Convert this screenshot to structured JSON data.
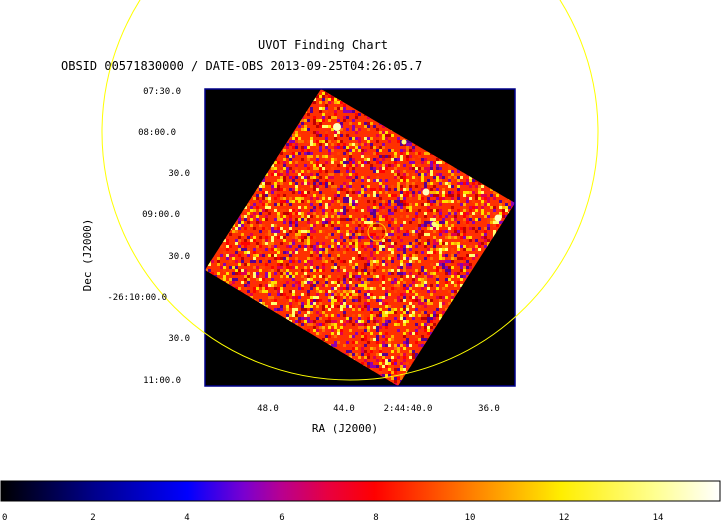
{
  "chart": {
    "title": "UVOT Finding Chart",
    "subtitle": "OBSID 00571830000 / DATE-OBS 2013-09-25T04:26:05.7",
    "xlabel": "RA (J2000)",
    "ylabel": "Dec (J2000)",
    "ra_ticks": [
      "48.0",
      "44.0",
      "2:44:40.0",
      "36.0"
    ],
    "dec_ticks": [
      "07:30.0",
      "08:00.0",
      "30.0",
      "09:00.0",
      "30.0",
      "-26:10:00.0",
      "30.0",
      "11:00.0"
    ],
    "colorbar_ticks": [
      "0",
      "2",
      "4",
      "6",
      "8",
      "10",
      "12",
      "14"
    ],
    "colorbar_range": [
      0,
      15.4
    ],
    "colormap_stops": [
      {
        "value": 0,
        "color": "#000000"
      },
      {
        "value": 2,
        "color": "#00008c"
      },
      {
        "value": 4,
        "color": "#0000ff"
      },
      {
        "value": 5.2,
        "color": "#7a00d0"
      },
      {
        "value": 6,
        "color": "#b80090"
      },
      {
        "value": 7,
        "color": "#e80040"
      },
      {
        "value": 8,
        "color": "#ff0000"
      },
      {
        "value": 10,
        "color": "#ff7a00"
      },
      {
        "value": 12,
        "color": "#ffee00"
      },
      {
        "value": 14,
        "color": "#ffff90"
      },
      {
        "value": 15.4,
        "color": "#ffffff"
      }
    ],
    "colors": {
      "error_circle": "#ffff00",
      "frame": "#00008b",
      "background": "#000000",
      "image_base": "#ff3000"
    }
  }
}
